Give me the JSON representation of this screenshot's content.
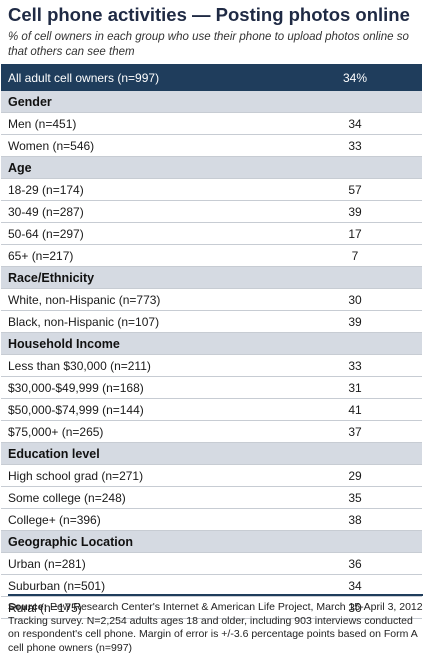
{
  "title": "Cell phone activities — Posting photos online",
  "subtitle": "% of cell owners in each group who use their phone to upload photos online so that others can see them",
  "total": {
    "label": "All adult cell owners (n=997)",
    "value": "34%"
  },
  "sections": [
    {
      "heading": "Gender",
      "rows": [
        {
          "label": "Men (n=451)",
          "value": "34"
        },
        {
          "label": "Women (n=546)",
          "value": "33"
        }
      ]
    },
    {
      "heading": "Age",
      "rows": [
        {
          "label": "18-29 (n=174)",
          "value": "57"
        },
        {
          "label": "30-49 (n=287)",
          "value": "39"
        },
        {
          "label": "50-64 (n=297)",
          "value": "17"
        },
        {
          "label": "65+ (n=217)",
          "value": "7"
        }
      ]
    },
    {
      "heading": "Race/Ethnicity",
      "rows": [
        {
          "label": "White, non-Hispanic (n=773)",
          "value": "30"
        },
        {
          "label": "Black, non-Hispanic (n=107)",
          "value": "39"
        }
      ]
    },
    {
      "heading": "Household Income",
      "rows": [
        {
          "label": "Less than $30,000 (n=211)",
          "value": "33"
        },
        {
          "label": "$30,000-$49,999 (n=168)",
          "value": "31"
        },
        {
          "label": "$50,000-$74,999 (n=144)",
          "value": "41"
        },
        {
          "label": "$75,000+ (n=265)",
          "value": "37"
        }
      ]
    },
    {
      "heading": "Education level",
      "rows": [
        {
          "label": "High school grad (n=271)",
          "value": "29"
        },
        {
          "label": "Some college (n=248)",
          "value": "35"
        },
        {
          "label": "College+ (n=396)",
          "value": "38"
        }
      ]
    },
    {
      "heading": "Geographic Location",
      "rows": [
        {
          "label": "Urban (n=281)",
          "value": "36"
        },
        {
          "label": "Suburban (n=501)",
          "value": "34"
        },
        {
          "label": "Rural (n=175)",
          "value": "30"
        }
      ]
    }
  ],
  "source": {
    "label": "Source:",
    "text": "Pew Research Center's Internet & American Life Project, March 15-April 3, 2012 Tracking survey. N=2,254 adults ages 18 and older, including 903 interviews conducted on respondent's cell phone. Margin of error is +/-3.6 percentage points based on Form A cell phone owners (n=997)"
  },
  "colors": {
    "header_bg": "#1f3d5c",
    "section_bg": "#d5dae2",
    "title": "#1f2a44"
  }
}
